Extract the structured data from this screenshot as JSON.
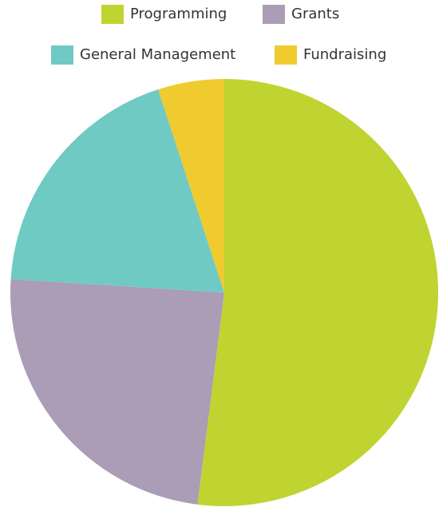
{
  "chart_data": {
    "type": "pie",
    "categories": [
      "Programming",
      "Grants",
      "General Management",
      "Fundraising"
    ],
    "values": [
      52,
      24,
      19,
      5
    ],
    "colors": [
      "#bfd430",
      "#aa9db5",
      "#6fcac3",
      "#f0cb2f"
    ],
    "legend": "top"
  }
}
